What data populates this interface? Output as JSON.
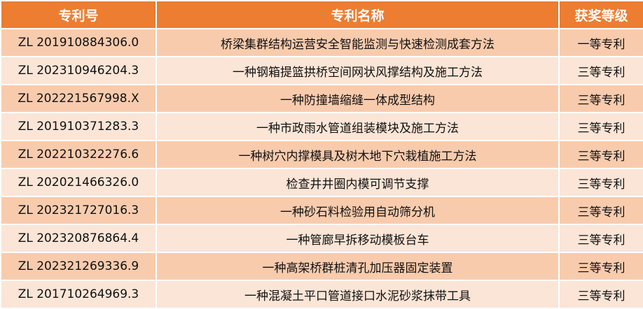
{
  "colors": {
    "header": "#ED7D31",
    "row_dark": "#F8CBAD",
    "row_light": "#FBE5D6"
  },
  "headers": [
    "专利号",
    "专利名称",
    "获奖等级"
  ],
  "rows": [
    {
      "number": "ZL 201910884306.0",
      "name": "桥梁集群结构运营安全智能监测与快速检测成套方法",
      "level": "一等专利"
    },
    {
      "number": "ZL 202310946204.3",
      "name": "一种钢箱提篮拱桥空间网状风撑结构及施工方法",
      "level": "三等专利"
    },
    {
      "number": "ZL 202221567998.X",
      "name": "一种防撞墙缩缝一体成型结构",
      "level": "三等专利"
    },
    {
      "number": "ZL 201910371283.3",
      "name": "一种市政雨水管道组装模块及施工方法",
      "level": "三等专利"
    },
    {
      "number": "ZL 202210322276.6",
      "name": "一种树穴内撑模具及树木地下穴栽植施工方法",
      "level": "三等专利"
    },
    {
      "number": "ZL 202021466326.0",
      "name": "检查井井圈内模可调节支撑",
      "level": "三等专利"
    },
    {
      "number": "ZL 202321727016.3",
      "name": "一种砂石料检验用自动筛分机",
      "level": "三等专利"
    },
    {
      "number": "ZL 202320876864.4",
      "name": "一种管廊早拆移动模板台车",
      "level": "三等专利"
    },
    {
      "number": "ZL 202321269336.9",
      "name": "一种高架桥群桩清孔加压器固定装置",
      "level": "三等专利"
    },
    {
      "number": "ZL 201710264969.3",
      "name": "一种混凝土平口管道接口水泥砂浆抹带工具",
      "level": "三等专利"
    }
  ]
}
